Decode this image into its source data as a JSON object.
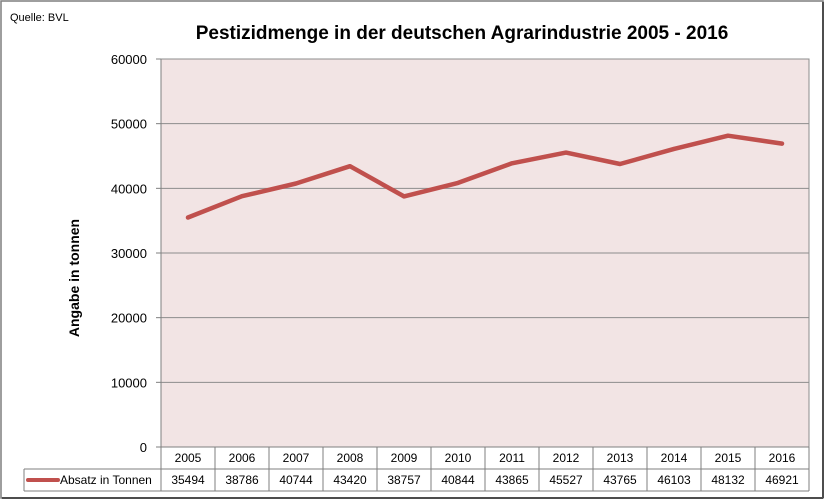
{
  "source": "Quelle: BVL",
  "chart_data": {
    "type": "line",
    "title": "Pestizidmenge in der deutschen Agrarindustrie 2005 - 2016",
    "ylabel": "Angabe in tonnen",
    "xlabel": "",
    "ylim": [
      0,
      60000
    ],
    "yticks": [
      0,
      10000,
      20000,
      30000,
      40000,
      50000,
      60000
    ],
    "grid": true,
    "legend": "data-table-bottom",
    "categories": [
      "2005",
      "2006",
      "2007",
      "2008",
      "2009",
      "2010",
      "2011",
      "2012",
      "2013",
      "2014",
      "2015",
      "2016"
    ],
    "series": [
      {
        "name": "Absatz in Tonnen",
        "color": "#c0504d",
        "values": [
          35494,
          38786,
          40744,
          43420,
          38757,
          40844,
          43865,
          45527,
          43765,
          46103,
          48132,
          46921
        ]
      }
    ]
  },
  "colors": {
    "plot_background": "#f2e4e4",
    "gridline": "#8c8c8c",
    "frame": "#000000"
  }
}
